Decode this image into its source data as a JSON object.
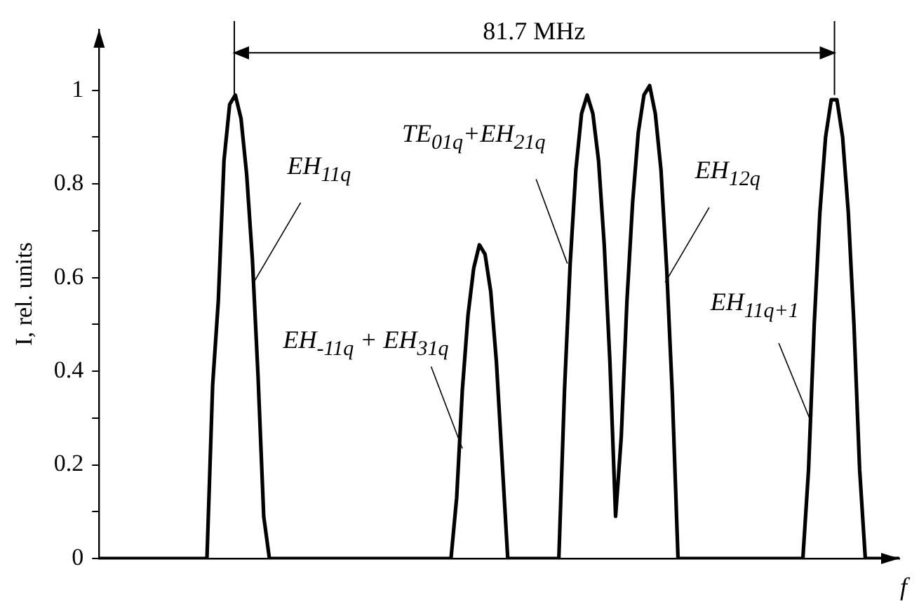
{
  "chart_data": {
    "type": "line",
    "xlabel": "f",
    "ylabel": "I, rel. units",
    "tick_labels": "y",
    "grid": false,
    "marker": "none",
    "line_style": "solid",
    "ylim": [
      0,
      1.13
    ],
    "yticks": [
      0,
      {
        "value": 0.1,
        "label": null
      },
      0.2,
      {
        "value": 0.3,
        "label": null
      },
      0.4,
      {
        "value": 0.5,
        "label": null
      },
      0.6,
      {
        "value": 0.7,
        "label": null
      },
      0.8,
      {
        "value": 0.9,
        "label": null
      },
      1
    ],
    "annotations": [
      "81.7 MHz",
      "EH$_{11q}$",
      "EH$_{-11q}$ + EH$_{31q}$",
      "TE$_{01q}$+EH$_{21q}$",
      "EH$_{12q}$",
      "EH$_{11q+1}$"
    ],
    "categories": [
      null,
      null,
      null,
      null,
      null,
      null,
      null,
      null,
      null,
      null,
      null,
      null,
      null,
      null,
      null,
      null,
      null,
      null,
      null,
      null,
      null,
      null,
      null,
      null,
      null,
      null,
      null,
      null,
      null,
      null,
      null,
      null,
      null,
      null,
      null,
      null,
      null,
      null,
      null,
      null,
      null,
      null,
      null,
      null,
      null,
      null,
      null,
      null,
      null,
      null,
      null,
      null,
      null,
      null,
      null,
      null,
      null,
      null,
      null,
      null,
      null,
      null,
      null,
      null,
      null,
      null,
      null,
      null,
      null,
      null,
      null,
      null,
      null,
      null,
      null,
      null,
      null,
      null,
      null,
      null,
      null,
      null,
      null,
      null,
      null,
      null,
      null,
      null,
      null,
      null,
      null,
      null,
      null,
      null,
      null,
      null,
      null,
      null,
      null,
      null,
      null,
      null,
      null,
      null,
      null,
      null,
      null,
      null,
      null,
      null,
      null,
      null,
      null,
      null,
      null,
      null,
      null,
      null,
      null,
      null,
      null,
      null,
      null,
      null,
      null,
      null,
      null,
      null,
      null,
      null,
      null,
      null,
      null,
      null,
      null,
      null,
      null,
      null,
      null,
      null,
      null,
      null
    ],
    "series": [
      {
        "color": "#000000",
        "values": [
          0,
          0,
          0,
          0,
          0,
          0,
          0,
          0,
          0,
          0,
          0,
          0,
          0,
          0,
          0,
          0,
          0,
          0,
          0,
          0,
          0.37,
          0.55,
          0.85,
          0.97,
          0.99,
          0.94,
          0.82,
          0.64,
          0.39,
          0.09,
          0,
          0,
          0,
          0,
          0,
          0,
          0,
          0,
          0,
          0,
          0,
          0,
          0,
          0,
          0,
          0,
          0,
          0,
          0,
          0,
          0,
          0,
          0,
          0,
          0,
          0,
          0,
          0,
          0,
          0,
          0,
          0,
          0,
          0.13,
          0.36,
          0.52,
          0.62,
          0.67,
          0.65,
          0.57,
          0.42,
          0.21,
          0,
          0,
          0,
          0,
          0,
          0,
          0,
          0,
          0,
          0,
          0.36,
          0.63,
          0.83,
          0.95,
          0.99,
          0.95,
          0.85,
          0.67,
          0.42,
          0.09,
          0.26,
          0.55,
          0.76,
          0.91,
          0.99,
          1.01,
          0.95,
          0.83,
          0.62,
          0.35,
          0,
          0,
          0,
          0,
          0,
          0,
          0,
          0,
          0,
          0,
          0,
          0,
          0,
          0,
          0,
          0,
          0,
          0,
          0,
          0,
          0,
          0,
          0,
          0.19,
          0.5,
          0.74,
          0.9,
          0.98,
          0.98,
          0.9,
          0.74,
          0.5,
          0.19,
          0,
          0,
          0,
          0,
          0,
          0,
          0
        ]
      }
    ]
  }
}
